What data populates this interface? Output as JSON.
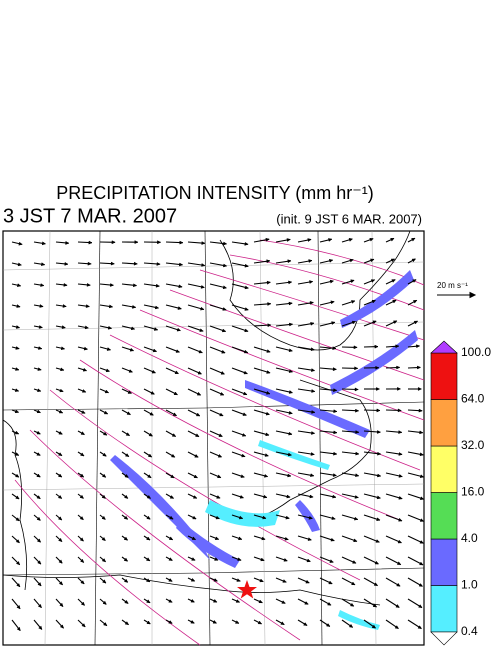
{
  "header": {
    "title": "PRECIPITATION INTENSITY (mm hr⁻¹)",
    "valid_time": "3 JST 7 MAR. 2007",
    "init_time": "(init. 9 JST 6 MAR. 2007)"
  },
  "wind_reference": {
    "label": "20 m s⁻¹"
  },
  "colorbar": {
    "levels": [
      {
        "value": 0.4,
        "label": "0.4"
      },
      {
        "value": 1,
        "label": "1.0"
      },
      {
        "value": 4,
        "label": "4.0"
      },
      {
        "value": 16,
        "label": "16.0"
      },
      {
        "value": 32,
        "label": "32.0"
      },
      {
        "value": 64,
        "label": "64.0"
      },
      {
        "value": 100,
        "label": "100.0"
      }
    ],
    "colors": [
      "#55eeff",
      "#6a6aff",
      "#55dd55",
      "#ffff66",
      "#ffa040",
      "#ee1111"
    ],
    "under_color": "#ffffff",
    "over_color": "#b03cff"
  }
}
